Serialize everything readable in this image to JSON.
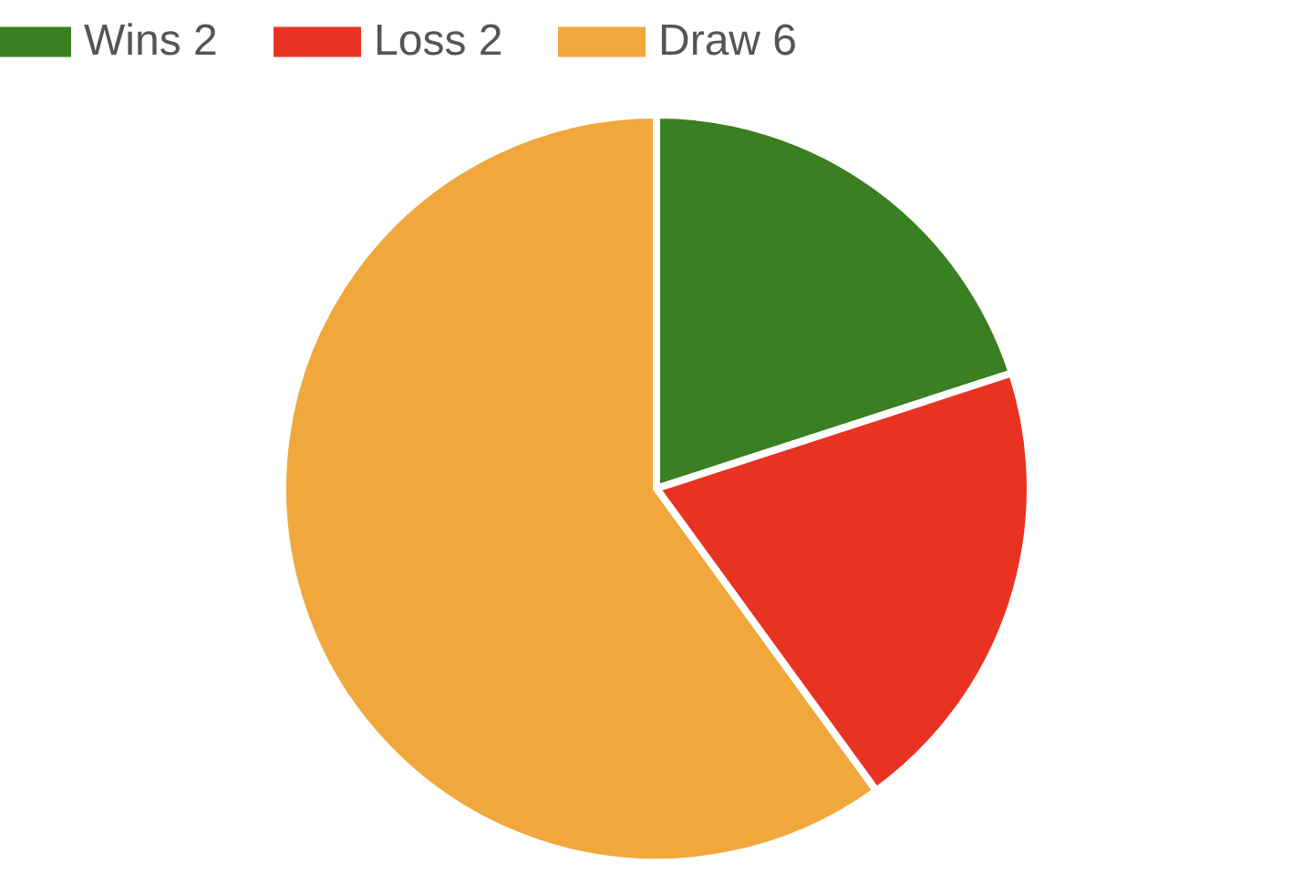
{
  "chart_data": {
    "type": "pie",
    "categories": [
      "Wins 2",
      "Loss 2",
      "Draw 6"
    ],
    "values": [
      2,
      2,
      6
    ],
    "colors": [
      "#3a7f22",
      "#e83323",
      "#f0a73b"
    ],
    "legend": "top"
  }
}
